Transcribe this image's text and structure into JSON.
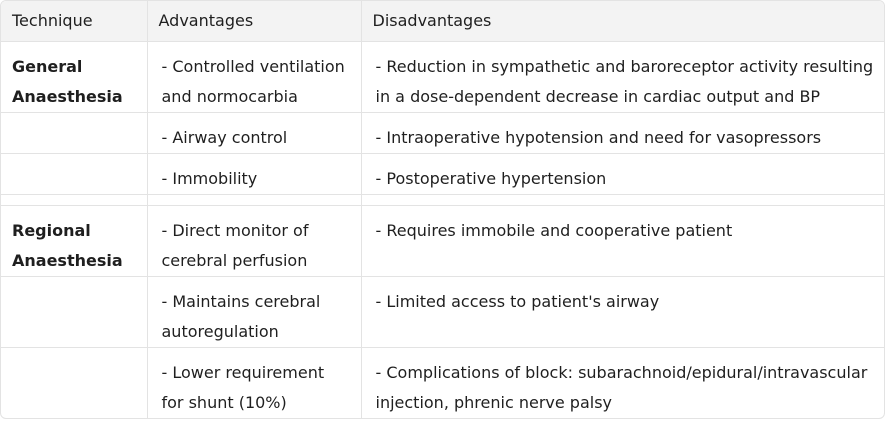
{
  "headers": [
    "Technique",
    "Advantages",
    "Disadvantages"
  ],
  "rows": [
    {
      "technique": "General Anaesthesia",
      "advantage": "- Controlled ventilation and normocarbia",
      "disadvantage": "- Reduction in sympathetic and baroreceptor activity resulting in a dose-dependent decrease in cardiac output and BP"
    },
    {
      "technique": "",
      "advantage": "- Airway control",
      "disadvantage": "- Intraoperative hypotension and need for vasopressors"
    },
    {
      "technique": "",
      "advantage": "- Immobility",
      "disadvantage": "- Postoperative hypertension"
    },
    {
      "technique": "Regional Anaesthesia",
      "advantage": "- Direct monitor of cerebral perfusion",
      "disadvantage": "- Requires immobile and cooperative patient"
    },
    {
      "technique": "",
      "advantage": "- Maintains cerebral autoregulation",
      "disadvantage": "- Limited access to patient's airway"
    },
    {
      "technique": "",
      "advantage": "- Lower requirement for shunt (10%)",
      "disadvantage": "- Complications of block: subarachnoid/epidural/intravascular injection, phrenic nerve palsy"
    }
  ]
}
